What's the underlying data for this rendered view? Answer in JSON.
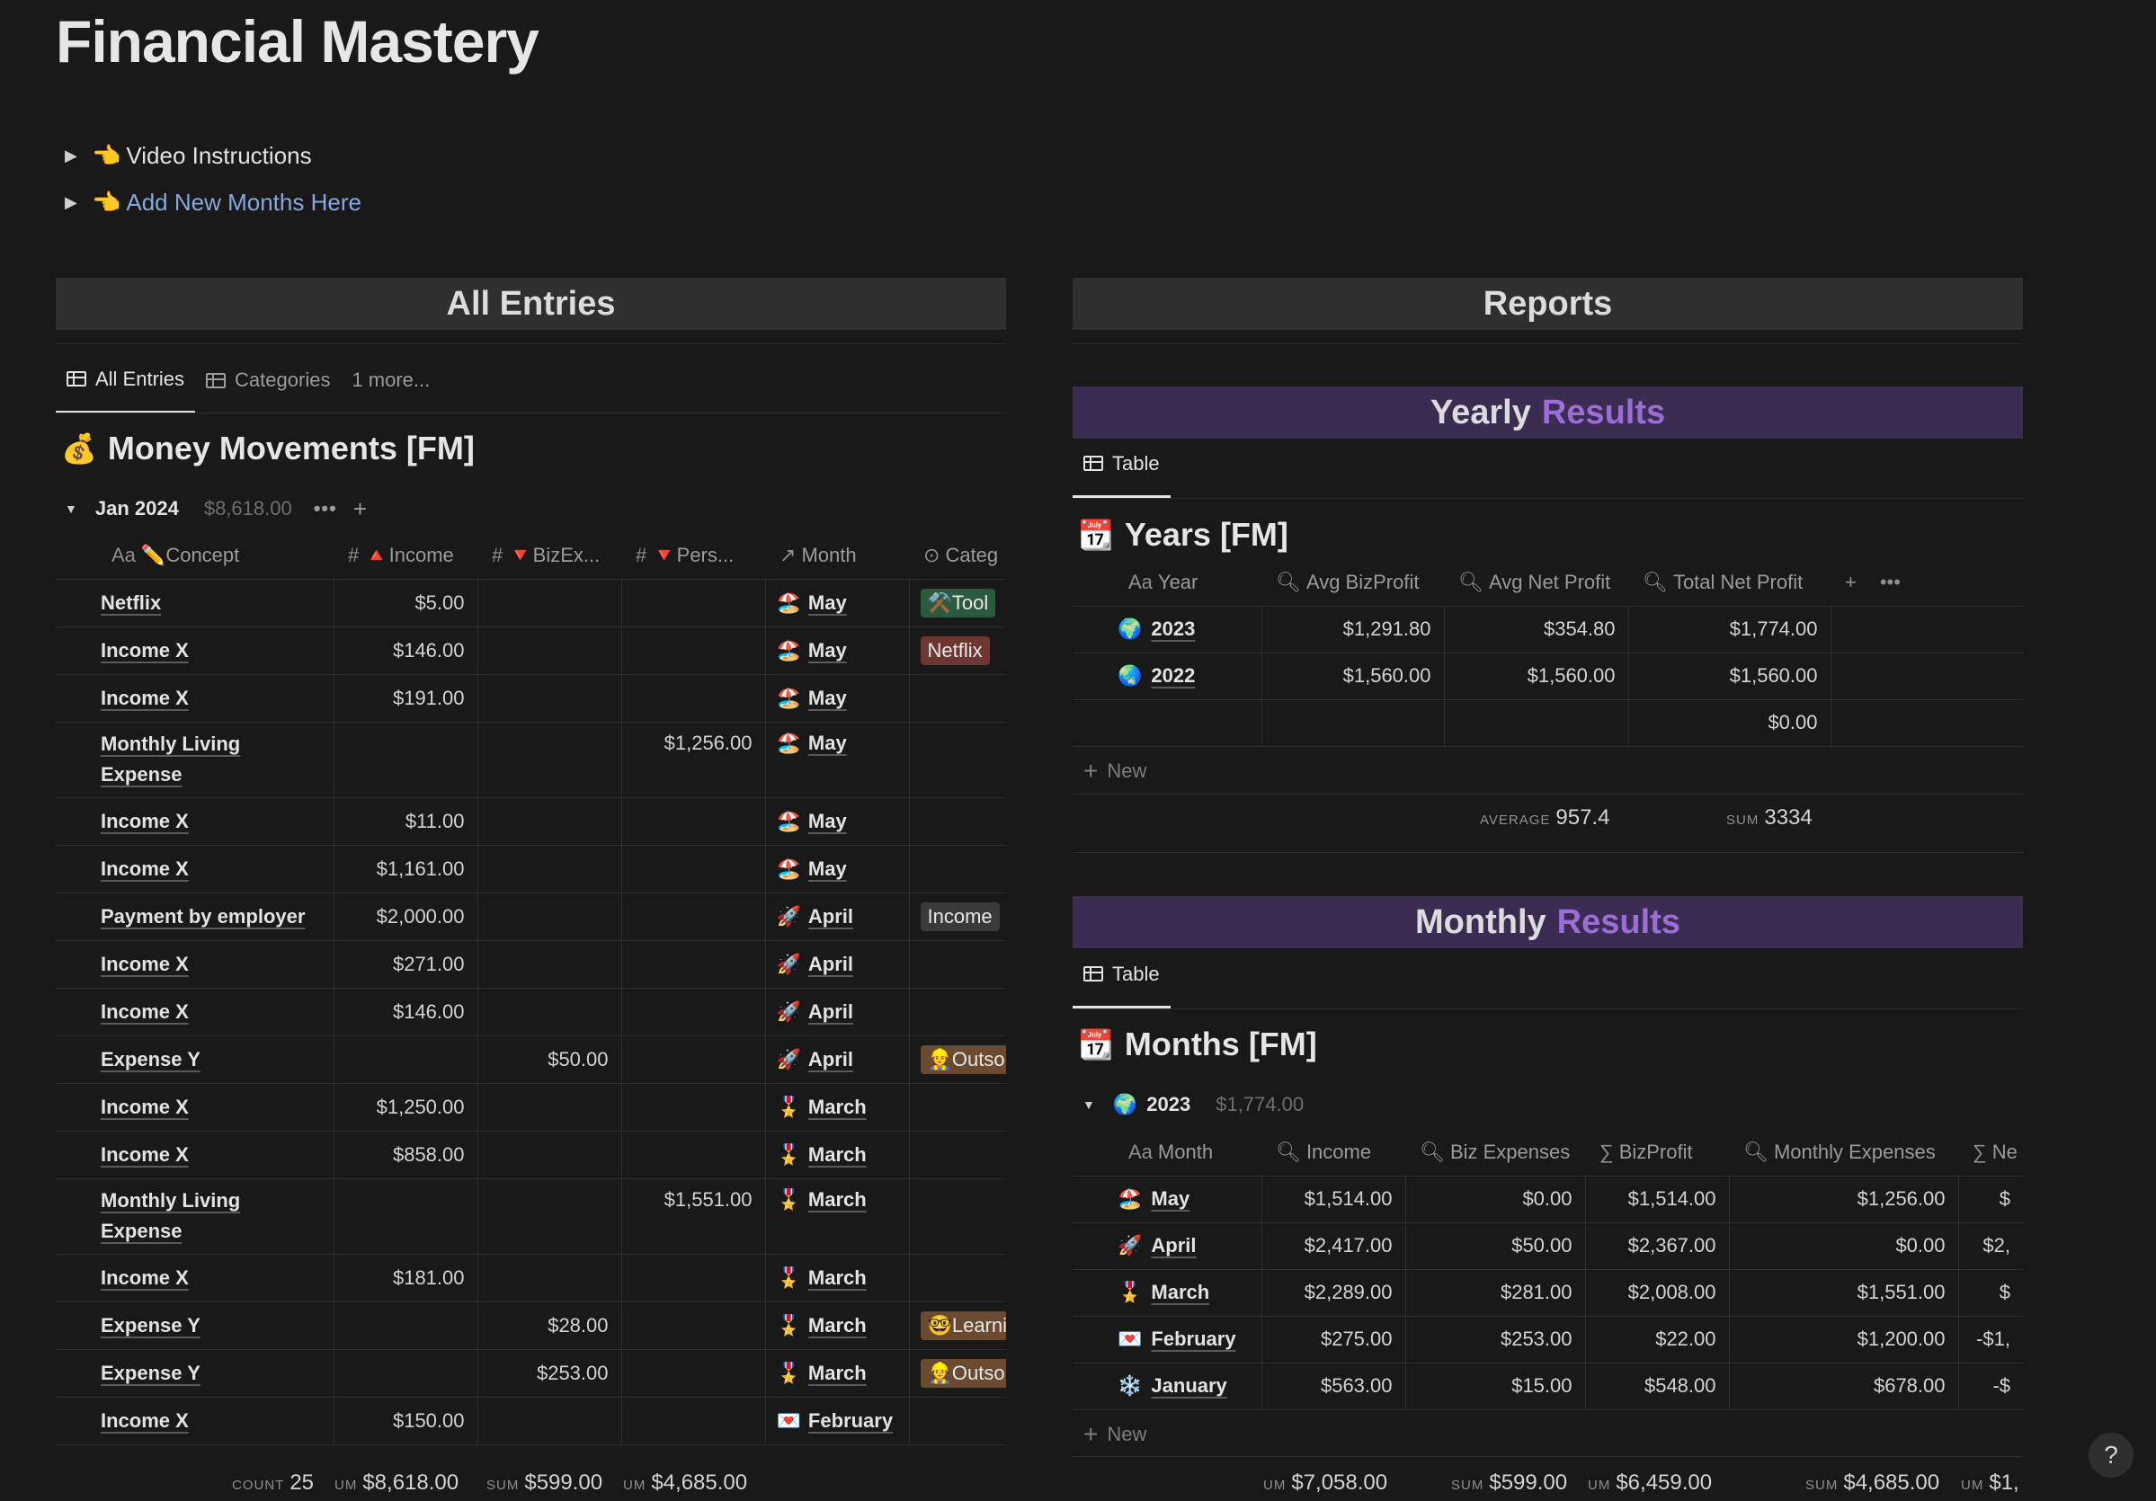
{
  "page": {
    "title": "Financial Mastery",
    "toggles": [
      {
        "emoji": "👈",
        "label": "Video Instructions"
      },
      {
        "emoji": "👈",
        "label": "Add New Months Here"
      }
    ]
  },
  "left": {
    "band": "All Entries",
    "tabs": [
      "All Entries",
      "Categories",
      "1 more..."
    ],
    "db_emoji": "💰",
    "db_title": "Money Movements [FM]",
    "group": {
      "label": "Jan 2024",
      "sum": "$8,618.00",
      "dots": "•••",
      "plus": "+"
    },
    "columns": [
      "✏️Concept",
      "🔺Income",
      "🔻BizEx...",
      "🔻Pers...",
      "Month",
      "Categ"
    ],
    "rows": [
      {
        "concept": "Netflix",
        "income": "$5.00",
        "biz": "",
        "pers": "",
        "month_emoji": "🏖️",
        "month": "May",
        "tag": "⚒️Tool",
        "tagc": "green"
      },
      {
        "concept": "Income X",
        "income": "$146.00",
        "biz": "",
        "pers": "",
        "month_emoji": "🏖️",
        "month": "May",
        "tag": "Netflix",
        "tagc": "red"
      },
      {
        "concept": "Income X",
        "income": "$191.00",
        "biz": "",
        "pers": "",
        "month_emoji": "🏖️",
        "month": "May",
        "tag": "",
        "tagc": ""
      },
      {
        "concept": "Monthly Living Expense",
        "income": "",
        "biz": "",
        "pers": "$1,256.00",
        "month_emoji": "🏖️",
        "month": "May",
        "tag": "",
        "tagc": ""
      },
      {
        "concept": "Income X",
        "income": "$11.00",
        "biz": "",
        "pers": "",
        "month_emoji": "🏖️",
        "month": "May",
        "tag": "",
        "tagc": ""
      },
      {
        "concept": "Income X",
        "income": "$1,161.00",
        "biz": "",
        "pers": "",
        "month_emoji": "🏖️",
        "month": "May",
        "tag": "",
        "tagc": ""
      },
      {
        "concept": "Payment by employer",
        "income": "$2,000.00",
        "biz": "",
        "pers": "",
        "month_emoji": "🚀",
        "month": "April",
        "tag": "Income",
        "tagc": "gray"
      },
      {
        "concept": "Income X",
        "income": "$271.00",
        "biz": "",
        "pers": "",
        "month_emoji": "🚀",
        "month": "April",
        "tag": "",
        "tagc": ""
      },
      {
        "concept": "Income X",
        "income": "$146.00",
        "biz": "",
        "pers": "",
        "month_emoji": "🚀",
        "month": "April",
        "tag": "",
        "tagc": ""
      },
      {
        "concept": "Expense Y",
        "income": "",
        "biz": "$50.00",
        "pers": "",
        "month_emoji": "🚀",
        "month": "April",
        "tag": "👷Outso",
        "tagc": "brown"
      },
      {
        "concept": "Income X",
        "income": "$1,250.00",
        "biz": "",
        "pers": "",
        "month_emoji": "🎖️",
        "month": "March",
        "tag": "",
        "tagc": ""
      },
      {
        "concept": "Income X",
        "income": "$858.00",
        "biz": "",
        "pers": "",
        "month_emoji": "🎖️",
        "month": "March",
        "tag": "",
        "tagc": ""
      },
      {
        "concept": "Monthly Living Expense",
        "income": "",
        "biz": "",
        "pers": "$1,551.00",
        "month_emoji": "🎖️",
        "month": "March",
        "tag": "",
        "tagc": ""
      },
      {
        "concept": "Income X",
        "income": "$181.00",
        "biz": "",
        "pers": "",
        "month_emoji": "🎖️",
        "month": "March",
        "tag": "",
        "tagc": ""
      },
      {
        "concept": "Expense Y",
        "income": "",
        "biz": "$28.00",
        "pers": "",
        "month_emoji": "🎖️",
        "month": "March",
        "tag": "🤓Learni",
        "tagc": "brown"
      },
      {
        "concept": "Expense Y",
        "income": "",
        "biz": "$253.00",
        "pers": "",
        "month_emoji": "🎖️",
        "month": "March",
        "tag": "👷Outso",
        "tagc": "brown"
      },
      {
        "concept": "Income X",
        "income": "$150.00",
        "biz": "",
        "pers": "",
        "month_emoji": "💌",
        "month": "February",
        "tag": "",
        "tagc": ""
      }
    ],
    "footer": {
      "count_k": "COUNT",
      "count_v": "25",
      "inc_k": "UM",
      "inc_v": "$8,618.00",
      "biz_k": "SUM",
      "biz_v": "$599.00",
      "pers_k": "UM",
      "pers_v": "$4,685.00"
    }
  },
  "right": {
    "band": "Reports",
    "yearly": {
      "band_a": "Yearly",
      "band_b": "Results",
      "tab": "Table",
      "db_emoji": "📆",
      "db_title": "Years [FM]",
      "columns": [
        "Year",
        "Avg BizProfit",
        "Avg Net Profit",
        "Total Net Profit"
      ],
      "rows": [
        {
          "emoji": "🌍",
          "year": "2023",
          "avg_biz": "$1,291.80",
          "avg_net": "$354.80",
          "total": "$1,774.00"
        },
        {
          "emoji": "🌏",
          "year": "2022",
          "avg_biz": "$1,560.00",
          "avg_net": "$1,560.00",
          "total": "$1,560.00"
        },
        {
          "emoji": "",
          "year": "",
          "avg_biz": "",
          "avg_net": "",
          "total": "$0.00"
        }
      ],
      "new_label": "New",
      "footer": {
        "avg_k": "AVERAGE",
        "avg_v": "957.4",
        "sum_k": "SUM",
        "sum_v": "3334"
      }
    },
    "monthly": {
      "band_a": "Monthly",
      "band_b": "Results",
      "tab": "Table",
      "db_emoji": "📆",
      "db_title": "Months [FM]",
      "group": {
        "emoji": "🌍",
        "label": "2023",
        "sum": "$1,774.00"
      },
      "columns": [
        "Month",
        "Income",
        "Biz Expenses",
        "BizProfit",
        "Monthly Expenses",
        "Ne"
      ],
      "rows": [
        {
          "emoji": "🏖️",
          "month": "May",
          "income": "$1,514.00",
          "biz": "$0.00",
          "profit": "$1,514.00",
          "exp": "$1,256.00",
          "net": "$"
        },
        {
          "emoji": "🚀",
          "month": "April",
          "income": "$2,417.00",
          "biz": "$50.00",
          "profit": "$2,367.00",
          "exp": "$0.00",
          "net": "$2,"
        },
        {
          "emoji": "🎖️",
          "month": "March",
          "income": "$2,289.00",
          "biz": "$281.00",
          "profit": "$2,008.00",
          "exp": "$1,551.00",
          "net": "$"
        },
        {
          "emoji": "💌",
          "month": "February",
          "income": "$275.00",
          "biz": "$253.00",
          "profit": "$22.00",
          "exp": "$1,200.00",
          "net": "-$1,"
        },
        {
          "emoji": "❄️",
          "month": "January",
          "income": "$563.00",
          "biz": "$15.00",
          "profit": "$548.00",
          "exp": "$678.00",
          "net": "-$"
        }
      ],
      "new_label": "New",
      "footer": {
        "inc_k": "UM",
        "inc_v": "$7,058.00",
        "biz_k": "SUM",
        "biz_v": "$599.00",
        "profit_k": "UM",
        "profit_v": "$6,459.00",
        "exp_k": "SUM",
        "exp_v": "$4,685.00",
        "net_k": "UM",
        "net_v": "$1,"
      }
    }
  },
  "help": "?"
}
